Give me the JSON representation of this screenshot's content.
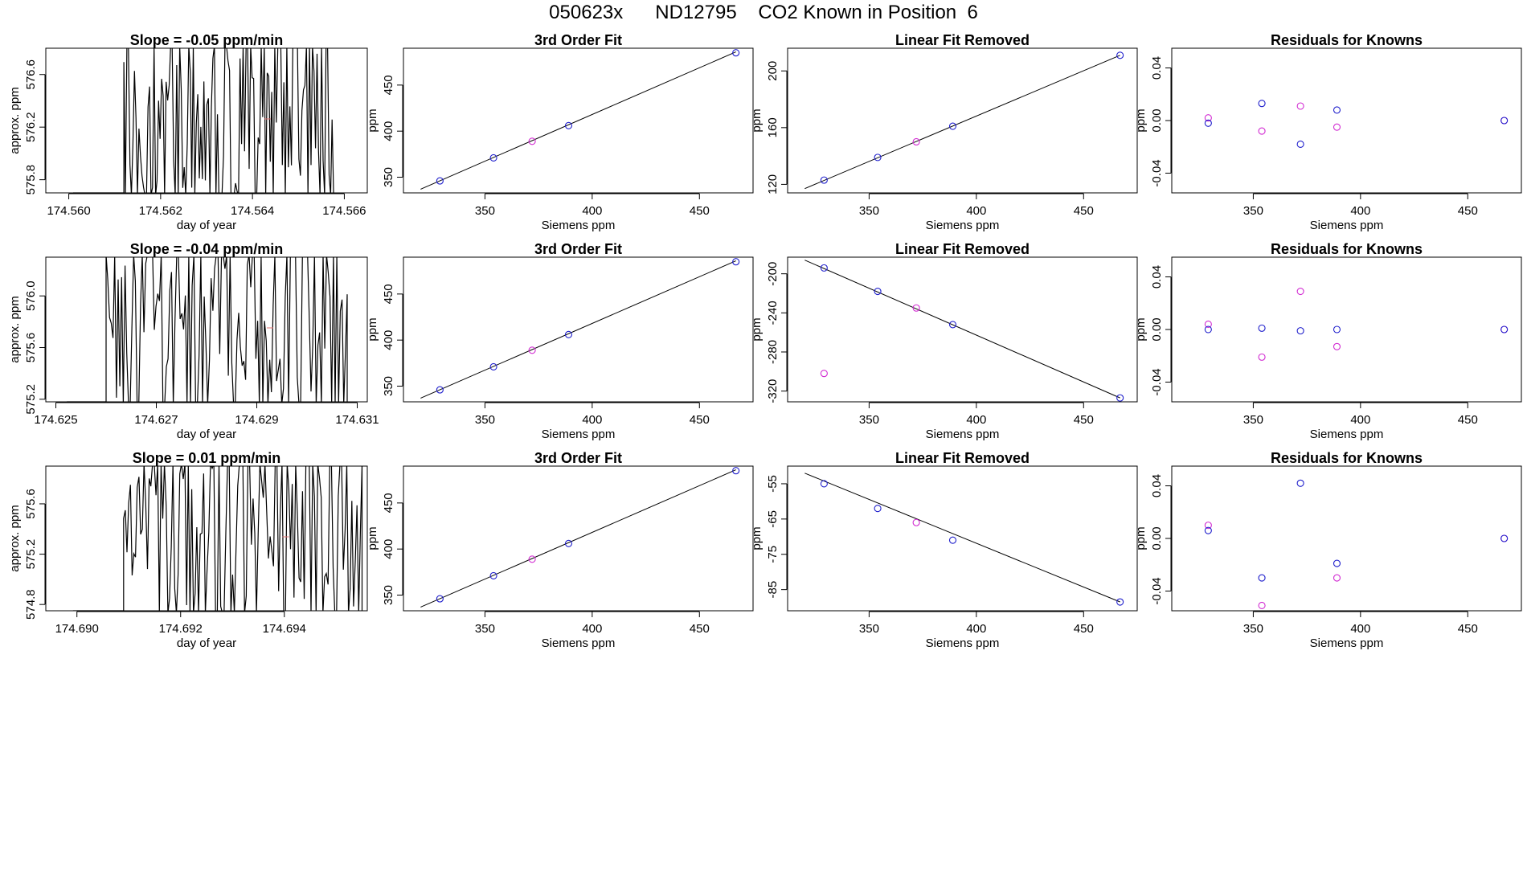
{
  "page_title": "050623x      ND12795    CO2 Known in Position  6",
  "colors": {
    "line": "#000000",
    "blue": "#1f1fcc",
    "magenta": "#d22bd2",
    "marker": "#e07070"
  },
  "chart_data": [
    {
      "type": "line",
      "title": "Slope =  -0.05  ppm/min",
      "xlabel": "day of year",
      "ylabel": "approx. ppm",
      "xlim": [
        174.5595,
        174.5665
      ],
      "ylim": [
        575.7,
        576.8
      ],
      "xticks": [
        "174.560",
        "174.562",
        "174.564",
        "174.566"
      ],
      "xtick_values": [
        174.56,
        174.562,
        174.564,
        174.566
      ],
      "yticks": [
        "575.8",
        "576.2",
        "576.6"
      ],
      "ytick_values": [
        575.8,
        576.2,
        576.6
      ],
      "x_range": [
        174.5612,
        174.5658
      ],
      "seed": 11
    },
    {
      "type": "line+scatter",
      "title": "3rd Order Fit",
      "xlabel": "Siemens ppm",
      "ylabel": "ppm",
      "xlim": [
        312,
        475
      ],
      "ylim": [
        333,
        490
      ],
      "xticks": [
        "350",
        "400",
        "450"
      ],
      "xtick_values": [
        350,
        400,
        450
      ],
      "yticks": [
        "350",
        "400",
        "450"
      ],
      "ytick_values": [
        350,
        400,
        450
      ],
      "line": {
        "x": [
          320,
          467
        ],
        "y": [
          337,
          486
        ]
      },
      "points_blue": {
        "x": [
          329,
          354,
          389,
          467
        ],
        "y": [
          346,
          371,
          406,
          485
        ]
      },
      "points_magenta": {
        "x": [
          372
        ],
        "y": [
          389
        ]
      }
    },
    {
      "type": "line+scatter",
      "title": "Linear Fit Removed",
      "xlabel": "Siemens ppm",
      "ylabel": "ppm",
      "xlim": [
        312,
        475
      ],
      "ylim": [
        114,
        216
      ],
      "xticks": [
        "350",
        "400",
        "450"
      ],
      "xtick_values": [
        350,
        400,
        450
      ],
      "yticks": [
        "120",
        "160",
        "200"
      ],
      "ytick_values": [
        120,
        160,
        200
      ],
      "line": {
        "x": [
          320,
          467
        ],
        "y": [
          117,
          211
        ]
      },
      "points_blue": {
        "x": [
          329,
          354,
          389,
          467
        ],
        "y": [
          123,
          139,
          161,
          211
        ]
      },
      "points_magenta": {
        "x": [
          372
        ],
        "y": [
          150
        ]
      }
    },
    {
      "type": "scatter",
      "title": "Residuals for Knowns",
      "xlabel": "Siemens ppm",
      "ylabel": "ppm",
      "xlim": [
        312,
        475
      ],
      "ylim": [
        -0.055,
        0.055
      ],
      "xticks": [
        "350",
        "400",
        "450"
      ],
      "xtick_values": [
        350,
        400,
        450
      ],
      "yticks": [
        "-0.04",
        "0.00",
        "0.04"
      ],
      "ytick_values": [
        -0.04,
        0.0,
        0.04
      ],
      "points_blue": {
        "x": [
          329,
          354,
          372,
          389,
          467
        ],
        "y": [
          -0.002,
          0.013,
          -0.018,
          0.008,
          0.0
        ]
      },
      "points_magenta": {
        "x": [
          329,
          354,
          372,
          389,
          467
        ],
        "y": [
          0.002,
          -0.008,
          0.011,
          -0.005,
          0.0
        ]
      }
    },
    {
      "type": "line",
      "title": "Slope =  -0.04  ppm/min",
      "xlabel": "day of year",
      "ylabel": "approx. ppm",
      "xlim": [
        174.6248,
        174.6312
      ],
      "ylim": [
        575.18,
        576.3
      ],
      "xticks": [
        "174.625",
        "174.627",
        "174.629",
        "174.631"
      ],
      "xtick_values": [
        174.625,
        174.627,
        174.629,
        174.631
      ],
      "yticks": [
        "575.2",
        "575.6",
        "576.0"
      ],
      "ytick_values": [
        575.2,
        575.6,
        576.0
      ],
      "x_range": [
        174.626,
        174.6308
      ],
      "seed": 23
    },
    {
      "type": "line+scatter",
      "title": "3rd Order Fit",
      "xlabel": "Siemens ppm",
      "ylabel": "ppm",
      "xlim": [
        312,
        475
      ],
      "ylim": [
        333,
        490
      ],
      "xticks": [
        "350",
        "400",
        "450"
      ],
      "xtick_values": [
        350,
        400,
        450
      ],
      "yticks": [
        "350",
        "400",
        "450"
      ],
      "ytick_values": [
        350,
        400,
        450
      ],
      "line": {
        "x": [
          320,
          467
        ],
        "y": [
          337,
          486
        ]
      },
      "points_blue": {
        "x": [
          329,
          354,
          389,
          467
        ],
        "y": [
          346,
          371,
          406,
          485
        ]
      },
      "points_magenta": {
        "x": [
          372
        ],
        "y": [
          389
        ]
      }
    },
    {
      "type": "line+scatter",
      "title": "Linear Fit Removed",
      "xlabel": "Siemens ppm",
      "ylabel": "ppm",
      "xlim": [
        312,
        475
      ],
      "ylim": [
        -331,
        -183
      ],
      "xticks": [
        "350",
        "400",
        "450"
      ],
      "xtick_values": [
        350,
        400,
        450
      ],
      "yticks": [
        "-320",
        "-280",
        "-240",
        "-200"
      ],
      "ytick_values": [
        -320,
        -280,
        -240,
        -200
      ],
      "line": {
        "x": [
          320,
          467
        ],
        "y": [
          -186,
          -327
        ]
      },
      "points_blue": {
        "x": [
          329,
          354,
          389,
          467
        ],
        "y": [
          -194,
          -218,
          -252,
          -327
        ]
      },
      "points_magenta": {
        "x": [
          329,
          372
        ],
        "y": [
          -302,
          -235
        ]
      }
    },
    {
      "type": "scatter",
      "title": "Residuals for Knowns",
      "xlabel": "Siemens ppm",
      "ylabel": "ppm",
      "xlim": [
        312,
        475
      ],
      "ylim": [
        -0.055,
        0.055
      ],
      "xticks": [
        "350",
        "400",
        "450"
      ],
      "xtick_values": [
        350,
        400,
        450
      ],
      "yticks": [
        "-0.04",
        "0.00",
        "0.04"
      ],
      "ytick_values": [
        -0.04,
        0.0,
        0.04
      ],
      "points_blue": {
        "x": [
          329,
          354,
          372,
          389,
          467
        ],
        "y": [
          0.0,
          0.001,
          -0.001,
          0.0,
          0.0
        ]
      },
      "points_magenta": {
        "x": [
          329,
          354,
          372,
          389,
          467
        ],
        "y": [
          0.004,
          -0.021,
          0.029,
          -0.013,
          0.0
        ]
      }
    },
    {
      "type": "line",
      "title": "Slope =  0.01  ppm/min",
      "xlabel": "day of year",
      "ylabel": "approx. ppm",
      "xlim": [
        174.6894,
        174.6956
      ],
      "ylim": [
        574.75,
        575.9
      ],
      "xticks": [
        "174.690",
        "174.692",
        "174.694"
      ],
      "xtick_values": [
        174.69,
        174.692,
        174.694
      ],
      "yticks": [
        "574.8",
        "575.2",
        "575.6"
      ],
      "ytick_values": [
        574.8,
        575.2,
        575.6
      ],
      "x_range": [
        174.6909,
        174.6955
      ],
      "seed": 37
    },
    {
      "type": "line+scatter",
      "title": "3rd Order Fit",
      "xlabel": "Siemens ppm",
      "ylabel": "ppm",
      "xlim": [
        312,
        475
      ],
      "ylim": [
        333,
        490
      ],
      "xticks": [
        "350",
        "400",
        "450"
      ],
      "xtick_values": [
        350,
        400,
        450
      ],
      "yticks": [
        "350",
        "400",
        "450"
      ],
      "ytick_values": [
        350,
        400,
        450
      ],
      "line": {
        "x": [
          320,
          467
        ],
        "y": [
          337,
          486
        ]
      },
      "points_blue": {
        "x": [
          329,
          354,
          389,
          467
        ],
        "y": [
          346,
          371,
          406,
          485
        ]
      },
      "points_magenta": {
        "x": [
          372
        ],
        "y": [
          389
        ]
      }
    },
    {
      "type": "line+scatter",
      "title": "Linear Fit Removed",
      "xlabel": "Siemens ppm",
      "ylabel": "ppm",
      "xlim": [
        312,
        475
      ],
      "ylim": [
        -91,
        -50
      ],
      "xticks": [
        "350",
        "400",
        "450"
      ],
      "xtick_values": [
        350,
        400,
        450
      ],
      "yticks": [
        "-85",
        "-75",
        "-65",
        "-55"
      ],
      "ytick_values": [
        -85,
        -75,
        -65,
        -55
      ],
      "line": {
        "x": [
          320,
          467
        ],
        "y": [
          -52,
          -88.5
        ]
      },
      "points_blue": {
        "x": [
          329,
          354,
          389,
          467
        ],
        "y": [
          -55,
          -62,
          -71,
          -88.5
        ]
      },
      "points_magenta": {
        "x": [
          372
        ],
        "y": [
          -66
        ]
      }
    },
    {
      "type": "scatter",
      "title": "Residuals for Knowns",
      "xlabel": "Siemens ppm",
      "ylabel": "ppm",
      "xlim": [
        312,
        475
      ],
      "ylim": [
        -0.055,
        0.055
      ],
      "xticks": [
        "350",
        "400",
        "450"
      ],
      "xtick_values": [
        350,
        400,
        450
      ],
      "yticks": [
        "-0.04",
        "0.00",
        "0.04"
      ],
      "ytick_values": [
        -0.04,
        0.0,
        0.04
      ],
      "points_blue": {
        "x": [
          329,
          354,
          372,
          389,
          467
        ],
        "y": [
          0.006,
          -0.03,
          0.042,
          -0.019,
          0.0
        ]
      },
      "points_magenta": {
        "x": [
          329,
          354,
          389,
          467
        ],
        "y": [
          0.01,
          -0.051,
          -0.03,
          0.0
        ]
      }
    }
  ]
}
